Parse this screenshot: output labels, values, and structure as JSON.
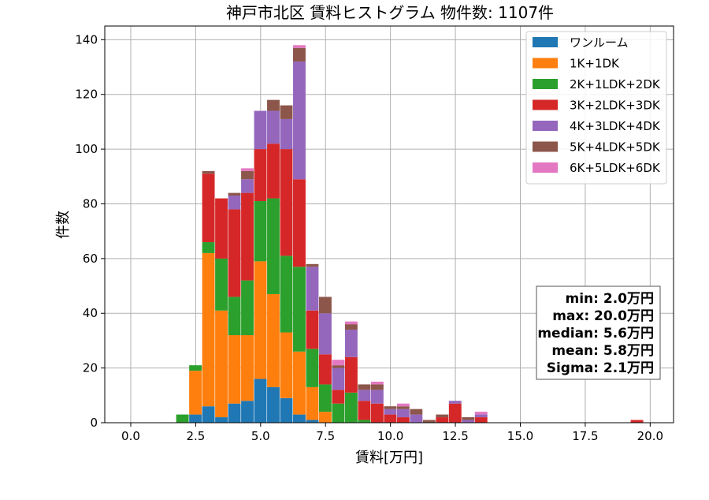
{
  "chart_data": {
    "type": "bar",
    "title": "神戸市北区 賃料ヒストグラム 物件数: 1107件",
    "xlabel": "賃料[万円]",
    "ylabel": "件数",
    "xlim": [
      -1.0,
      20.9
    ],
    "ylim": [
      0,
      145
    ],
    "xticks": [
      0.0,
      2.5,
      5.0,
      7.5,
      10.0,
      12.5,
      15.0,
      17.5,
      20.0
    ],
    "xtick_labels": [
      "0.0",
      "2.5",
      "5.0",
      "7.5",
      "10.0",
      "12.5",
      "15.0",
      "17.5",
      "20.0"
    ],
    "yticks": [
      0,
      20,
      40,
      60,
      80,
      100,
      120,
      140
    ],
    "ytick_labels": [
      "0",
      "20",
      "40",
      "60",
      "80",
      "100",
      "120",
      "140"
    ],
    "grid": true,
    "stacked": true,
    "legend_position": "top-right",
    "bin_width": 0.5,
    "bin_starts": [
      1.75,
      2.25,
      2.75,
      3.25,
      3.75,
      4.25,
      4.75,
      5.25,
      5.75,
      6.25,
      6.75,
      7.25,
      7.75,
      8.25,
      8.75,
      9.25,
      9.75,
      10.25,
      10.75,
      11.25,
      11.75,
      12.25,
      12.75,
      13.25,
      19.25
    ],
    "series": [
      {
        "name": "ワンルーム",
        "color": "#1f77b4",
        "values": [
          0,
          3,
          6,
          2,
          7,
          8,
          16,
          13,
          9,
          3,
          1,
          0,
          0,
          0,
          0,
          0,
          0,
          0,
          0,
          0,
          0,
          0,
          0,
          0,
          0
        ]
      },
      {
        "name": "1K+1DK",
        "color": "#ff7f0e",
        "values": [
          0,
          16,
          56,
          39,
          25,
          24,
          43,
          34,
          24,
          23,
          12,
          4,
          0,
          0,
          0,
          0,
          0,
          0,
          0,
          0,
          0,
          0,
          0,
          0,
          0
        ]
      },
      {
        "name": "2K+1LDK+2DK",
        "color": "#2ca02c",
        "values": [
          3,
          2,
          4,
          19,
          14,
          20,
          22,
          35,
          28,
          31,
          14,
          10,
          7,
          11,
          1,
          0,
          0,
          0,
          0,
          0,
          0,
          0,
          0,
          0,
          0
        ]
      },
      {
        "name": "3K+2LDK+3DK",
        "color": "#d62728",
        "values": [
          0,
          0,
          25,
          22,
          32,
          32,
          19,
          20,
          39,
          32,
          14,
          11,
          5,
          13,
          7,
          7,
          3,
          2,
          0,
          0,
          2,
          7,
          0,
          2,
          1
        ]
      },
      {
        "name": "4K+3LDK+4DK",
        "color": "#9467bd",
        "values": [
          0,
          0,
          0,
          0,
          5,
          5,
          14,
          12,
          11,
          43,
          16,
          15,
          8,
          10,
          4,
          5,
          2,
          3,
          3,
          0,
          0,
          1,
          1,
          1,
          0
        ]
      },
      {
        "name": "5K+4LDK+5DK",
        "color": "#8c564b",
        "values": [
          0,
          0,
          1,
          0,
          1,
          3,
          0,
          4,
          5,
          5,
          1,
          6,
          1,
          2,
          2,
          2,
          1,
          1,
          2,
          1,
          1,
          0,
          1,
          0,
          0
        ]
      },
      {
        "name": "6K+5LDK+6DK",
        "color": "#e377c2",
        "values": [
          0,
          0,
          0,
          0,
          0,
          1,
          0,
          0,
          0,
          1,
          0,
          0,
          2,
          1,
          0,
          1,
          0,
          1,
          0,
          0,
          0,
          0,
          0,
          1,
          0
        ]
      }
    ],
    "stats_box": [
      "min: 2.0万円",
      "max: 20.0万円",
      "median: 5.6万円",
      "mean: 5.8万円",
      "Sigma: 2.1万円"
    ]
  }
}
